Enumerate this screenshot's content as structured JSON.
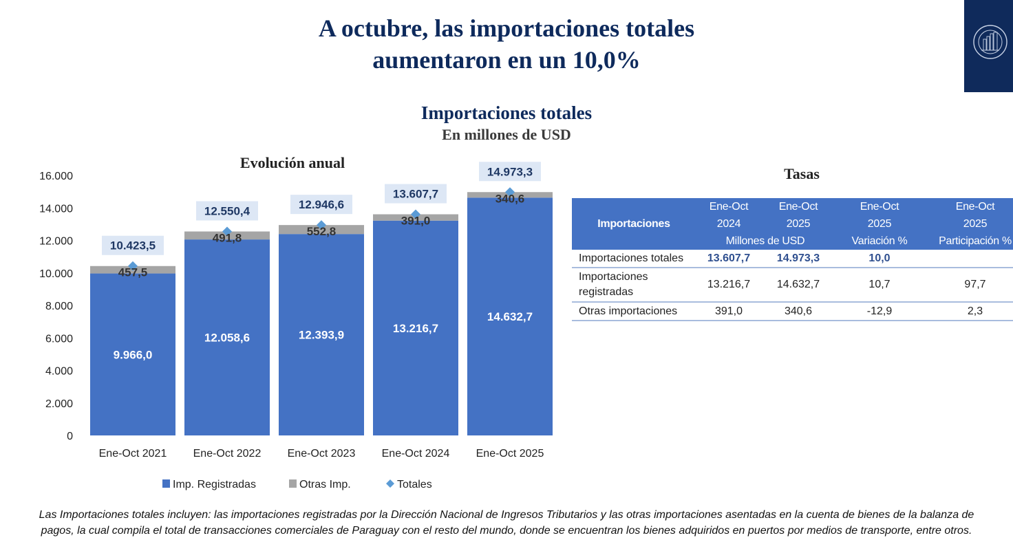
{
  "headline": {
    "line1": "A octubre, las importaciones totales",
    "line2": "aumentaron en un 10,0%"
  },
  "logo": {
    "icon": "central-bank-seal-icon",
    "background": "#0f2a5b"
  },
  "section": {
    "title": "Importaciones totales",
    "subtitle": "En millones de USD"
  },
  "chart_data": {
    "type": "bar",
    "stacked": true,
    "title": "Evolución anual",
    "xlabel": "",
    "ylabel": "",
    "categories": [
      "Ene-Oct 2021",
      "Ene-Oct 2022",
      "Ene-Oct 2023",
      "Ene-Oct 2024",
      "Ene-Oct 2025"
    ],
    "series": [
      {
        "name": "Imp. Registradas",
        "kind": "bar",
        "color": "#4472c4",
        "values": [
          9966.0,
          12058.6,
          12393.9,
          13216.7,
          14632.7
        ],
        "labels": [
          "9.966,0",
          "12.058,6",
          "12.393,9",
          "13.216,7",
          "14.632,7"
        ]
      },
      {
        "name": "Otras Imp.",
        "kind": "bar",
        "color": "#a5a5a5",
        "values": [
          457.5,
          491.8,
          552.8,
          391.0,
          340.6
        ],
        "labels": [
          "457,5",
          "491,8",
          "552,8",
          "391,0",
          "340,6"
        ]
      },
      {
        "name": "Totales",
        "kind": "marker",
        "marker": "diamond",
        "color": "#5b9bd5",
        "values": [
          10423.5,
          12550.4,
          12946.6,
          13607.7,
          14973.3
        ],
        "labels": [
          "10.423,5",
          "12.550,4",
          "12.946,6",
          "13.607,7",
          "14.973,3"
        ]
      }
    ],
    "ylim": [
      0,
      16000
    ],
    "yticks": [
      0,
      2000,
      4000,
      6000,
      8000,
      10000,
      12000,
      14000,
      16000
    ],
    "ytick_labels": [
      "0",
      "2.000",
      "4.000",
      "6.000",
      "8.000",
      "10.000",
      "12.000",
      "14.000",
      "16.000"
    ],
    "grid": false,
    "legend": "bottom"
  },
  "tasas": {
    "title": "Tasas",
    "header": {
      "col0": "Importaciones",
      "col1": [
        "Ene-Oct",
        "2024"
      ],
      "col2": [
        "Ene-Oct",
        "2025"
      ],
      "col12_sub": "Millones de USD",
      "col3": [
        "Ene-Oct",
        "2025",
        "Variación %"
      ],
      "col4": [
        "Ene-Oct",
        "2025",
        "Participación %"
      ]
    },
    "rows": [
      {
        "label": "Importaciones totales",
        "v2024": "13.607,7",
        "v2025": "14.973,3",
        "variacion": "10,0",
        "participacion": ""
      },
      {
        "label": "Importaciones registradas",
        "v2024": "13.216,7",
        "v2025": "14.632,7",
        "variacion": "10,7",
        "participacion": "97,7"
      },
      {
        "label": "Otras importaciones",
        "v2024": "391,0",
        "v2025": "340,6",
        "variacion": "-12,9",
        "participacion": "2,3"
      }
    ]
  },
  "footnote": {
    "line1": "Las Importaciones totales incluyen: las importaciones registradas por la Dirección Nacional de Ingresos Tributarios y las otras importaciones asentadas en la cuenta de bienes de la balanza de",
    "line2": "pagos, la cual compila el total de transacciones comerciales de Paraguay con el resto del mundo, donde se encuentran los bienes adquiridos en puertos por medios de transporte, entre otros."
  }
}
